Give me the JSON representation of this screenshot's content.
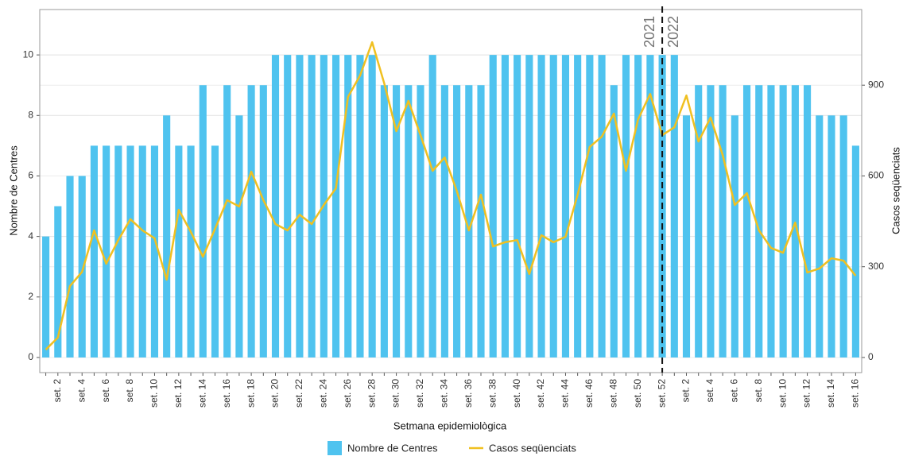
{
  "chart_data": {
    "type": "bar_line",
    "x_label": "Setmana epidemiològica",
    "y_label": "Nombre de Centres",
    "y2_label": "Casos seqüenciats",
    "annotations": [
      "2021",
      "2022"
    ],
    "vline_at": "set. 52",
    "categories": [
      null,
      "set. 2",
      null,
      "set. 4",
      null,
      "set. 6",
      null,
      "set. 8",
      null,
      "set. 10",
      null,
      "set. 12",
      null,
      "set. 14",
      null,
      "set. 16",
      null,
      "set. 18",
      null,
      "set. 20",
      null,
      "set. 22",
      null,
      "set. 24",
      null,
      "set. 26",
      null,
      "set. 28",
      null,
      "set. 30",
      null,
      "set. 32",
      null,
      "set. 34",
      null,
      "set. 36",
      null,
      "set. 38",
      null,
      "set. 40",
      null,
      "set. 42",
      null,
      "set. 44",
      null,
      "set. 46",
      null,
      "set. 48",
      null,
      "set. 50",
      null,
      "set. 52",
      null,
      "set. 2",
      null,
      "set. 4",
      null,
      "set. 6",
      null,
      "set. 8",
      null,
      "set. 10",
      null,
      "set. 12",
      null,
      "set. 14",
      null,
      "set. 16"
    ],
    "series": [
      {
        "name": "Nombre de Centres",
        "type": "bar",
        "color": "#4fc3ef",
        "values": [
          4,
          5,
          6,
          6,
          7,
          7,
          7,
          7,
          7,
          7,
          8,
          7,
          7,
          9,
          7,
          9,
          8,
          9,
          9,
          10,
          10,
          10,
          10,
          10,
          10,
          10,
          10,
          10,
          9,
          9,
          9,
          9,
          10,
          9,
          9,
          9,
          9,
          10,
          10,
          10,
          10,
          10,
          10,
          10,
          10,
          10,
          10,
          9,
          10,
          10,
          10,
          10,
          10,
          8,
          9,
          9,
          9,
          8,
          9,
          9,
          9,
          9,
          9,
          9,
          8,
          8,
          8,
          7
        ]
      },
      {
        "name": "Casos seqüenciats",
        "type": "line",
        "axis": "y2",
        "color": "#f0c020",
        "values": [
          26,
          66,
          236,
          283,
          420,
          310,
          388,
          457,
          420,
          394,
          257,
          488,
          415,
          333,
          425,
          520,
          499,
          614,
          520,
          441,
          420,
          472,
          441,
          504,
          559,
          861,
          932,
          1042,
          906,
          748,
          848,
          735,
          617,
          661,
          551,
          420,
          538,
          367,
          381,
          388,
          276,
          404,
          381,
          399,
          538,
          696,
          730,
          806,
          617,
          787,
          871,
          735,
          761,
          866,
          714,
          793,
          669,
          504,
          543,
          420,
          362,
          346,
          446,
          281,
          294,
          328,
          320,
          270
        ]
      }
    ],
    "ylim": [
      -0.5,
      11.5
    ],
    "yticks": [
      0,
      2,
      4,
      6,
      8,
      10
    ],
    "y2lim": [
      -50,
      1150
    ],
    "y2ticks": [
      0,
      300,
      600,
      900
    ],
    "grid": true
  }
}
